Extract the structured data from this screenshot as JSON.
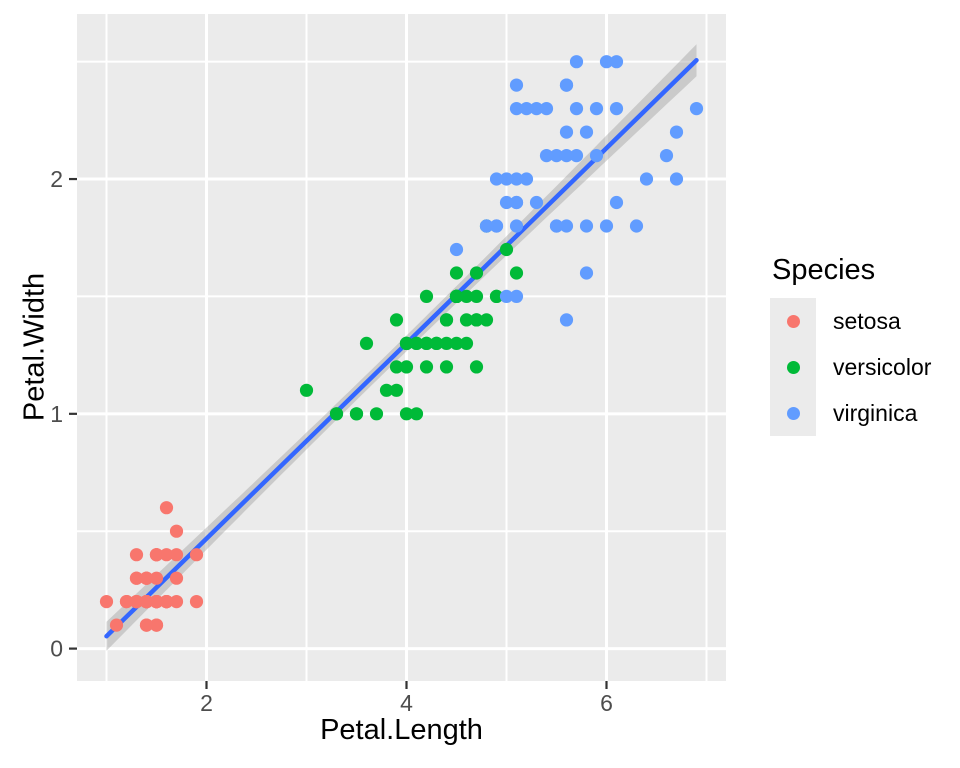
{
  "chart_data": {
    "type": "scatter",
    "title": "",
    "xlabel": "Petal.Length",
    "ylabel": "Petal.Width",
    "xlim": [
      0.705,
      7.195
    ],
    "ylim": [
      -0.138,
      2.703
    ],
    "grid": "on",
    "x_major_ticks": {
      "values": [
        2,
        4,
        6
      ],
      "labels": [
        "2",
        "4",
        "6"
      ]
    },
    "x_minor_gridlines": [
      1,
      3,
      5,
      7
    ],
    "y_major_ticks": {
      "values": [
        0,
        1,
        2
      ],
      "labels": [
        "0",
        "1",
        "2"
      ]
    },
    "y_minor_gridlines": [
      0.5,
      1.5,
      2.5
    ],
    "legend": {
      "title": "Species",
      "position": "right",
      "items": [
        {
          "label": "setosa",
          "color": "#F8766D"
        },
        {
          "label": "versicolor",
          "color": "#00BA38"
        },
        {
          "label": "virginica",
          "color": "#619CFF"
        }
      ]
    },
    "series": [
      {
        "name": "setosa",
        "color": "#F8766D",
        "points": [
          [
            1.4,
            0.2
          ],
          [
            1.4,
            0.2
          ],
          [
            1.3,
            0.2
          ],
          [
            1.5,
            0.2
          ],
          [
            1.4,
            0.2
          ],
          [
            1.7,
            0.4
          ],
          [
            1.4,
            0.3
          ],
          [
            1.5,
            0.2
          ],
          [
            1.4,
            0.2
          ],
          [
            1.5,
            0.1
          ],
          [
            1.5,
            0.2
          ],
          [
            1.6,
            0.2
          ],
          [
            1.4,
            0.1
          ],
          [
            1.1,
            0.1
          ],
          [
            1.2,
            0.2
          ],
          [
            1.5,
            0.4
          ],
          [
            1.3,
            0.4
          ],
          [
            1.4,
            0.3
          ],
          [
            1.7,
            0.3
          ],
          [
            1.5,
            0.3
          ],
          [
            1.7,
            0.2
          ],
          [
            1.5,
            0.4
          ],
          [
            1.0,
            0.2
          ],
          [
            1.7,
            0.5
          ],
          [
            1.9,
            0.2
          ],
          [
            1.6,
            0.2
          ],
          [
            1.6,
            0.4
          ],
          [
            1.5,
            0.2
          ],
          [
            1.4,
            0.2
          ],
          [
            1.6,
            0.2
          ],
          [
            1.6,
            0.2
          ],
          [
            1.5,
            0.4
          ],
          [
            1.5,
            0.1
          ],
          [
            1.4,
            0.2
          ],
          [
            1.5,
            0.2
          ],
          [
            1.2,
            0.2
          ],
          [
            1.3,
            0.2
          ],
          [
            1.4,
            0.1
          ],
          [
            1.3,
            0.2
          ],
          [
            1.5,
            0.2
          ],
          [
            1.3,
            0.3
          ],
          [
            1.3,
            0.3
          ],
          [
            1.3,
            0.2
          ],
          [
            1.6,
            0.6
          ],
          [
            1.9,
            0.4
          ],
          [
            1.4,
            0.3
          ],
          [
            1.6,
            0.2
          ],
          [
            1.4,
            0.2
          ],
          [
            1.5,
            0.2
          ],
          [
            1.4,
            0.2
          ]
        ]
      },
      {
        "name": "versicolor",
        "color": "#00BA38",
        "points": [
          [
            4.7,
            1.4
          ],
          [
            4.5,
            1.5
          ],
          [
            4.9,
            1.5
          ],
          [
            4.0,
            1.3
          ],
          [
            4.6,
            1.5
          ],
          [
            4.5,
            1.3
          ],
          [
            4.7,
            1.6
          ],
          [
            3.3,
            1.0
          ],
          [
            4.6,
            1.3
          ],
          [
            3.9,
            1.4
          ],
          [
            3.5,
            1.0
          ],
          [
            4.2,
            1.5
          ],
          [
            4.0,
            1.0
          ],
          [
            4.7,
            1.4
          ],
          [
            3.6,
            1.3
          ],
          [
            4.4,
            1.4
          ],
          [
            4.5,
            1.5
          ],
          [
            4.1,
            1.0
          ],
          [
            4.5,
            1.5
          ],
          [
            3.9,
            1.1
          ],
          [
            4.8,
            1.8
          ],
          [
            4.0,
            1.3
          ],
          [
            4.9,
            1.5
          ],
          [
            4.7,
            1.2
          ],
          [
            4.3,
            1.3
          ],
          [
            4.4,
            1.4
          ],
          [
            4.8,
            1.4
          ],
          [
            5.0,
            1.7
          ],
          [
            4.5,
            1.5
          ],
          [
            3.5,
            1.0
          ],
          [
            3.8,
            1.1
          ],
          [
            3.7,
            1.0
          ],
          [
            3.9,
            1.2
          ],
          [
            5.1,
            1.6
          ],
          [
            4.5,
            1.5
          ],
          [
            4.5,
            1.6
          ],
          [
            4.7,
            1.5
          ],
          [
            4.4,
            1.3
          ],
          [
            4.1,
            1.3
          ],
          [
            4.0,
            1.3
          ],
          [
            4.4,
            1.2
          ],
          [
            4.6,
            1.4
          ],
          [
            4.0,
            1.2
          ],
          [
            3.3,
            1.0
          ],
          [
            4.2,
            1.3
          ],
          [
            4.2,
            1.2
          ],
          [
            4.2,
            1.3
          ],
          [
            4.3,
            1.3
          ],
          [
            3.0,
            1.1
          ],
          [
            4.1,
            1.3
          ]
        ]
      },
      {
        "name": "virginica",
        "color": "#619CFF",
        "points": [
          [
            6.0,
            2.5
          ],
          [
            5.1,
            1.9
          ],
          [
            5.9,
            2.1
          ],
          [
            5.6,
            1.8
          ],
          [
            5.8,
            2.2
          ],
          [
            6.6,
            2.1
          ],
          [
            4.5,
            1.7
          ],
          [
            6.3,
            1.8
          ],
          [
            5.8,
            1.8
          ],
          [
            6.1,
            2.5
          ],
          [
            5.1,
            2.0
          ],
          [
            5.3,
            1.9
          ],
          [
            5.5,
            2.1
          ],
          [
            5.0,
            2.0
          ],
          [
            5.1,
            2.4
          ],
          [
            5.3,
            2.3
          ],
          [
            5.5,
            1.8
          ],
          [
            6.7,
            2.2
          ],
          [
            6.9,
            2.3
          ],
          [
            5.0,
            1.5
          ],
          [
            5.7,
            2.3
          ],
          [
            4.9,
            2.0
          ],
          [
            6.7,
            2.0
          ],
          [
            4.9,
            1.8
          ],
          [
            5.7,
            2.1
          ],
          [
            6.0,
            1.8
          ],
          [
            4.8,
            1.8
          ],
          [
            4.9,
            1.8
          ],
          [
            5.6,
            2.1
          ],
          [
            5.8,
            1.6
          ],
          [
            6.1,
            1.9
          ],
          [
            6.4,
            2.0
          ],
          [
            5.6,
            2.2
          ],
          [
            5.1,
            1.5
          ],
          [
            5.6,
            1.4
          ],
          [
            6.1,
            2.3
          ],
          [
            5.6,
            2.4
          ],
          [
            5.5,
            1.8
          ],
          [
            4.8,
            1.8
          ],
          [
            5.4,
            2.1
          ],
          [
            5.6,
            2.4
          ],
          [
            5.1,
            2.3
          ],
          [
            5.1,
            1.9
          ],
          [
            5.9,
            2.3
          ],
          [
            5.7,
            2.5
          ],
          [
            5.2,
            2.3
          ],
          [
            5.0,
            1.9
          ],
          [
            5.2,
            2.0
          ],
          [
            5.4,
            2.3
          ],
          [
            5.1,
            1.8
          ]
        ]
      }
    ],
    "smooth": {
      "method": "lm",
      "line_color": "#3366FF",
      "ribbon_color": "#999999",
      "ribbon_opacity": 0.4,
      "intercept": -0.3631,
      "slope": 0.4158,
      "x_range": [
        1.0,
        6.9
      ],
      "se": {
        "sigma": 0.2065,
        "n": 150,
        "x_mean": 3.758,
        "sxx": 464.325,
        "t_crit": 1.976
      }
    },
    "colors": {
      "figure_background": "#FFFFFF",
      "panel_background": "#EBEBEB",
      "grid": "#FFFFFF",
      "axis_text": "#4D4D4D",
      "axis_title": "#000000",
      "tick_marks": "#333333",
      "legend_key": "#EBEBEB"
    }
  }
}
